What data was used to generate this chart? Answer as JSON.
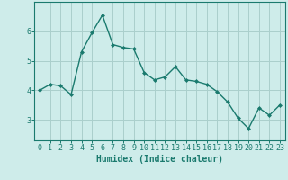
{
  "x": [
    0,
    1,
    2,
    3,
    4,
    5,
    6,
    7,
    8,
    9,
    10,
    11,
    12,
    13,
    14,
    15,
    16,
    17,
    18,
    19,
    20,
    21,
    22,
    23
  ],
  "y": [
    4.0,
    4.2,
    4.15,
    3.85,
    5.3,
    5.95,
    6.55,
    5.55,
    5.45,
    5.4,
    4.6,
    4.35,
    4.45,
    4.8,
    4.35,
    4.3,
    4.2,
    3.95,
    3.6,
    3.05,
    2.7,
    3.4,
    3.15,
    3.5
  ],
  "line_color": "#1a7a6e",
  "marker": "D",
  "marker_size": 2.0,
  "bg_color": "#ceecea",
  "grid_color": "#aacfcc",
  "axis_color": "#1a7a6e",
  "xlabel": "Humidex (Indice chaleur)",
  "xlim": [
    -0.5,
    23.5
  ],
  "ylim": [
    2.3,
    7.0
  ],
  "yticks": [
    3,
    4,
    5,
    6
  ],
  "xticks": [
    0,
    1,
    2,
    3,
    4,
    5,
    6,
    7,
    8,
    9,
    10,
    11,
    12,
    13,
    14,
    15,
    16,
    17,
    18,
    19,
    20,
    21,
    22,
    23
  ],
  "xlabel_fontsize": 7,
  "tick_fontsize": 6,
  "linewidth": 1.0
}
